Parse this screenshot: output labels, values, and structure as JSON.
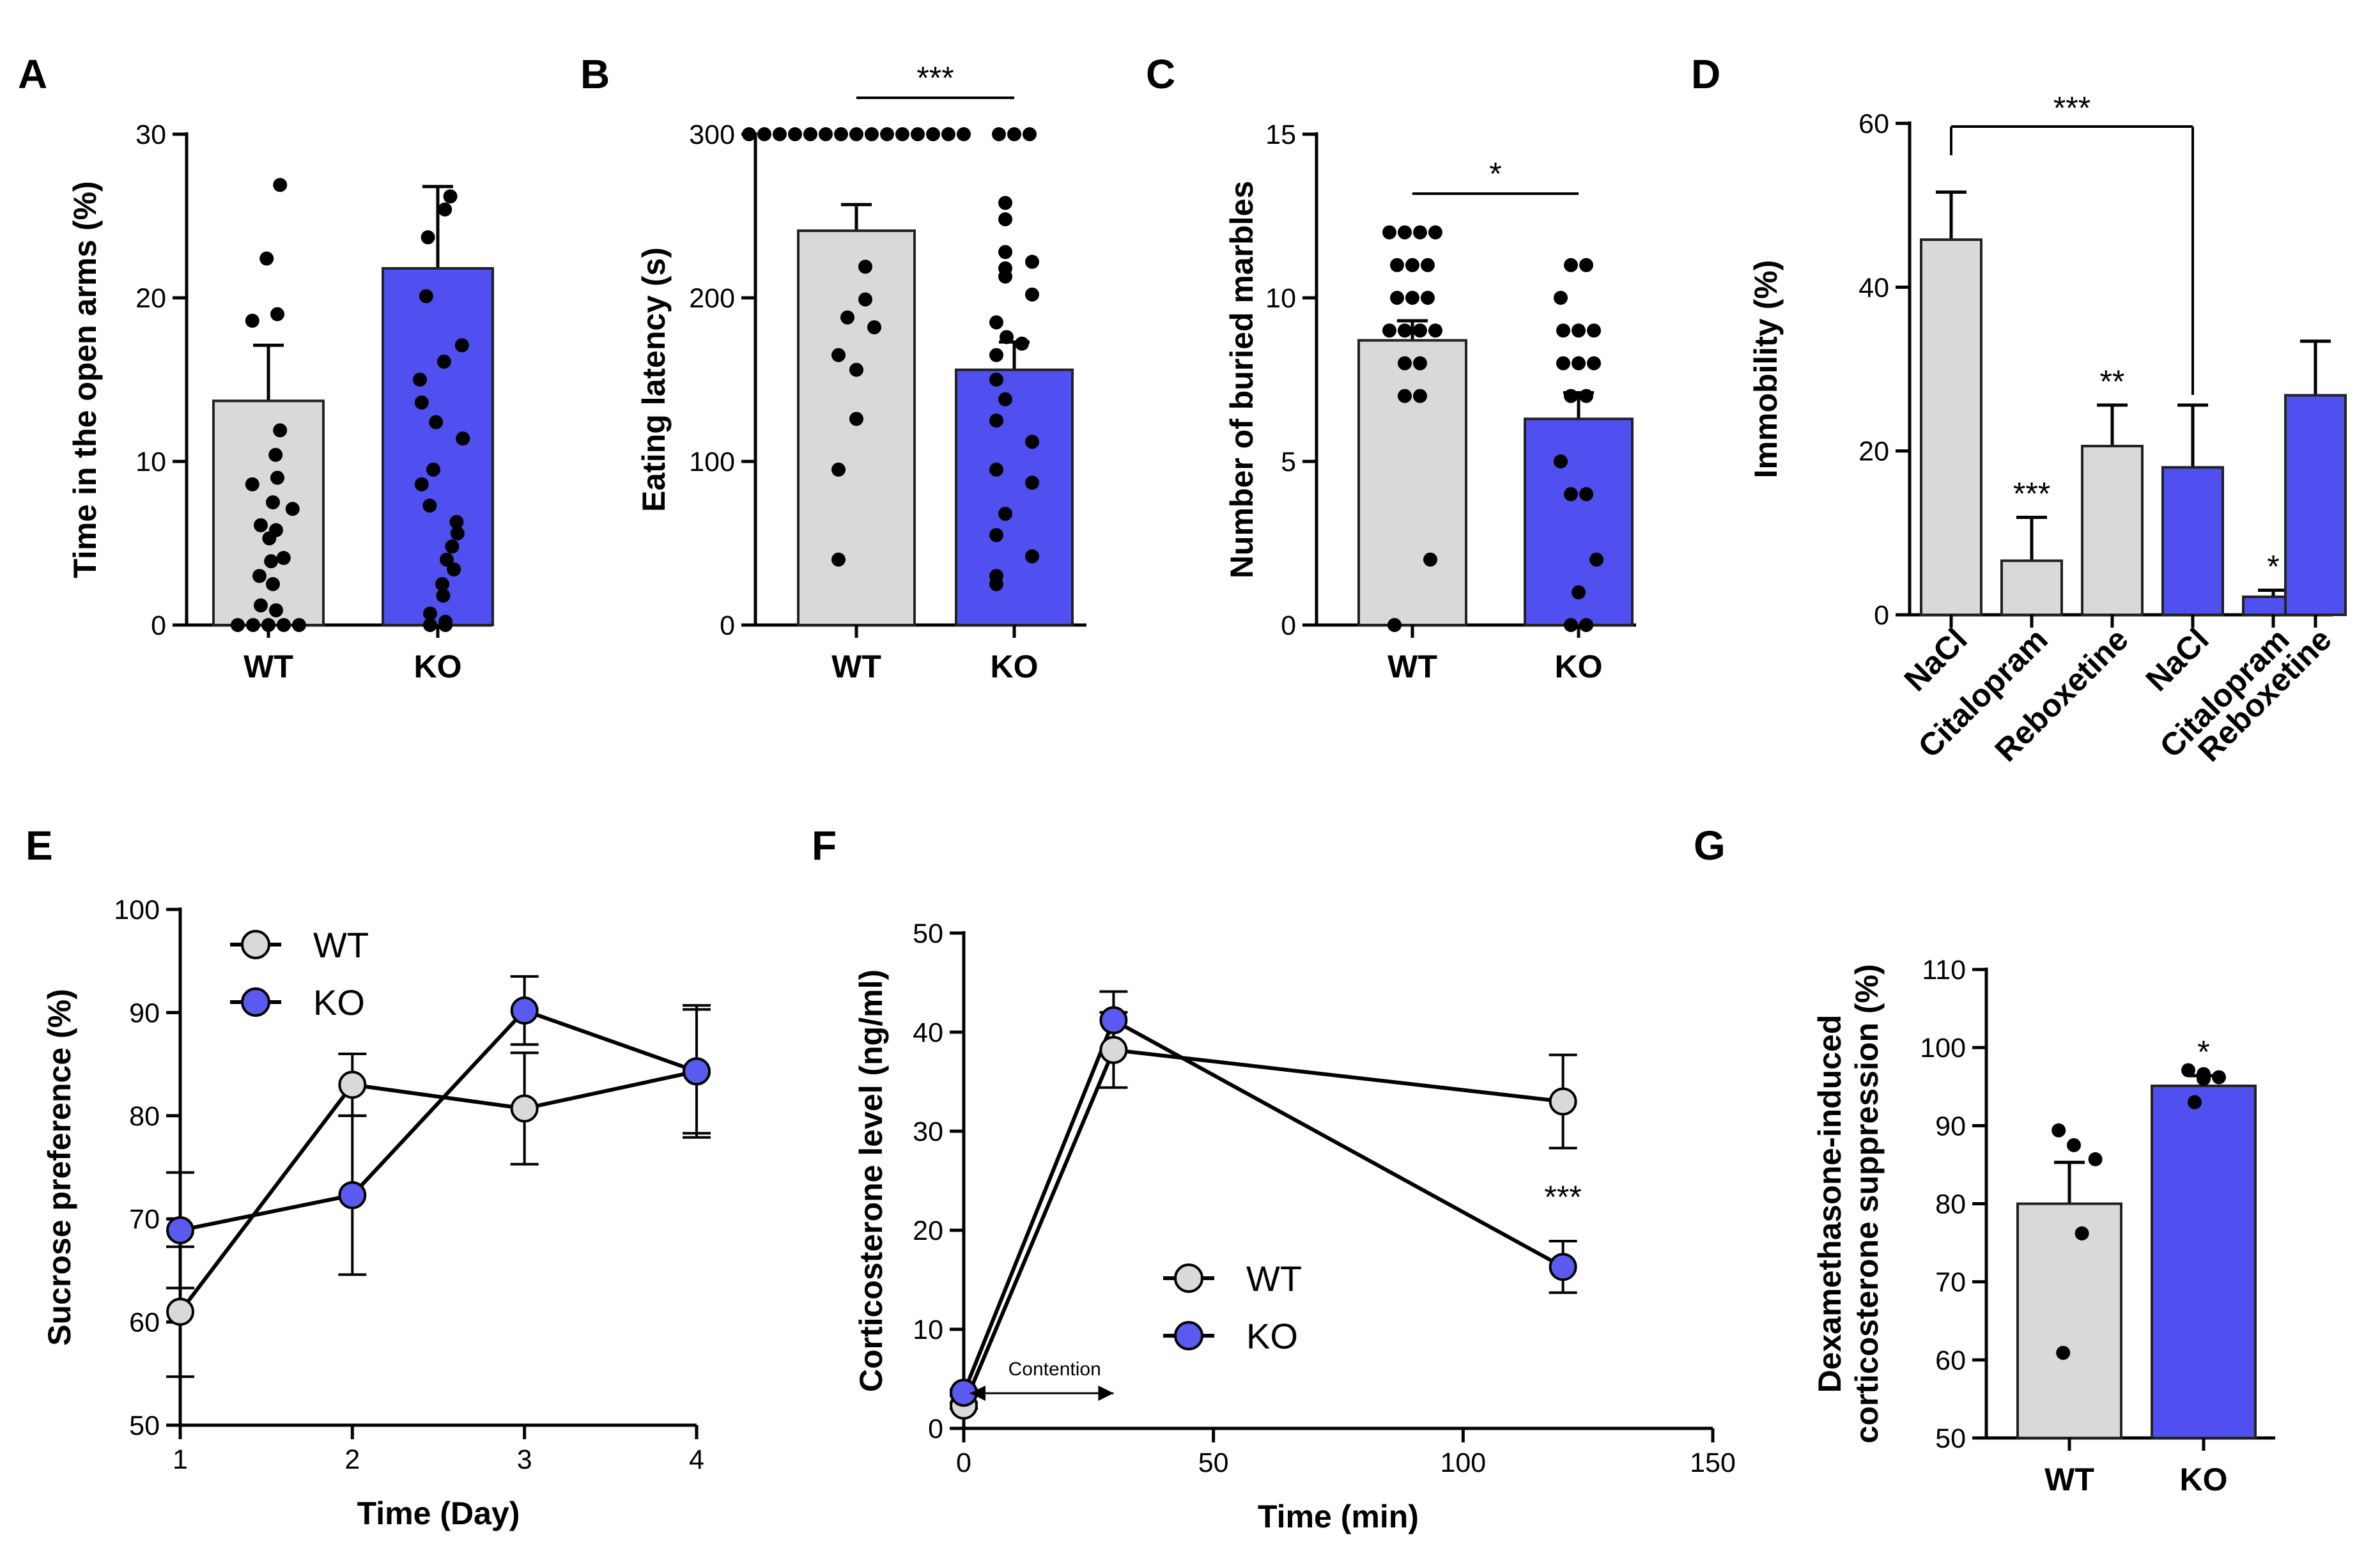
{
  "colors": {
    "wt": "#d9d9d9",
    "ko": "#5050f0",
    "wt_marker": "#d9d9d9",
    "ko_marker": "#5a5af0",
    "axis": "#000000",
    "dot": "#000000"
  },
  "chart_data": [
    {
      "panel": "A",
      "type": "bar",
      "ylabel": "Time in the open arms (%)",
      "ylim": [
        0,
        30
      ],
      "yticks": [
        0,
        10,
        20,
        30
      ],
      "categories": [
        "WT",
        "KO"
      ],
      "values": [
        13.7,
        21.8
      ],
      "errors": [
        3.4,
        5.0
      ],
      "points": [
        [
          26.9,
          22.4,
          19.0,
          18.6,
          11.9,
          10.4,
          9.0,
          8.6,
          7.5,
          7.1,
          6.1,
          5.8,
          5.3,
          4.1,
          3.9,
          3.0,
          2.5,
          1.2,
          0.9,
          0,
          0,
          0,
          0,
          0
        ],
        [
          26.2,
          25.4,
          23.7,
          20.1,
          17.1,
          16.1,
          15.0,
          13.6,
          12.4,
          11.4,
          9.5,
          8.6,
          7.3,
          6.3,
          5.6,
          4.8,
          4.0,
          3.4,
          2.5,
          1.8,
          0.7,
          0.2,
          0,
          0
        ]
      ],
      "significance": []
    },
    {
      "panel": "B",
      "type": "bar",
      "ylabel": "Eating latency (s)",
      "ylim": [
        0,
        300
      ],
      "yticks": [
        0,
        100,
        200,
        300
      ],
      "categories": [
        "WT",
        "KO"
      ],
      "values": [
        241,
        156
      ],
      "errors": [
        16,
        17
      ],
      "points": [
        [
          300,
          300,
          300,
          300,
          300,
          300,
          300,
          300,
          300,
          300,
          300,
          300,
          300,
          300,
          300,
          219,
          199,
          188,
          182,
          165,
          156,
          126,
          95,
          40
        ],
        [
          300,
          300,
          300,
          258,
          248,
          228,
          222,
          218,
          213,
          202,
          185,
          176,
          172,
          165,
          150,
          138,
          125,
          112,
          95,
          87,
          68,
          55,
          42,
          30,
          25
        ]
      ],
      "significance": [
        {
          "label": "***",
          "between": [
            0,
            1
          ]
        }
      ]
    },
    {
      "panel": "C",
      "type": "bar",
      "ylabel": "Number of buried marbles",
      "ylim": [
        0,
        15
      ],
      "yticks": [
        0,
        5,
        10,
        15
      ],
      "categories": [
        "WT",
        "KO"
      ],
      "values": [
        8.7,
        6.3
      ],
      "errors": [
        0.6,
        0.8
      ],
      "points": [
        [
          12,
          12,
          12,
          12,
          11,
          11,
          11,
          10,
          10,
          10,
          9,
          9,
          9,
          9,
          8,
          8,
          7,
          7,
          2,
          0
        ],
        [
          11,
          11,
          10,
          9,
          9,
          9,
          8,
          8,
          8,
          7,
          7,
          5,
          4,
          4,
          2,
          1,
          0,
          0
        ]
      ],
      "significance": [
        {
          "label": "*",
          "between": [
            0,
            1
          ]
        }
      ]
    },
    {
      "panel": "D",
      "type": "bar",
      "ylabel": "Immobility (%)",
      "ylim": [
        0,
        60
      ],
      "yticks": [
        0,
        20,
        40,
        60
      ],
      "categories": [
        "NaCl",
        "Citalopram",
        "Reboxetine",
        "NaCl",
        "Citalopram",
        "Reboxetine"
      ],
      "genotypes": [
        "WT",
        "WT",
        "WT",
        "KO",
        "KO",
        "KO"
      ],
      "values": [
        45.8,
        6.6,
        20.6,
        18.0,
        2.2,
        26.8
      ],
      "errors": [
        5.8,
        5.3,
        5.0,
        7.6,
        0.8,
        6.6
      ],
      "bar_annotations": [
        "",
        "***",
        "**",
        "",
        "*",
        ""
      ],
      "significance": [
        {
          "label": "***",
          "between": [
            0,
            3
          ]
        }
      ]
    },
    {
      "panel": "E",
      "type": "line",
      "xlabel": "Time (Day)",
      "ylabel": "Sucrose preference (%)",
      "xlim": [
        1,
        4
      ],
      "ylim": [
        50,
        100
      ],
      "xticks": [
        1,
        2,
        3,
        4
      ],
      "yticks": [
        50,
        60,
        70,
        80,
        90,
        100
      ],
      "x": [
        1,
        2,
        3,
        4
      ],
      "series": [
        {
          "name": "WT",
          "values": [
            61.0,
            83.0,
            80.7,
            84.3
          ],
          "errors": [
            6.3,
            3.0,
            5.4,
            6.4
          ]
        },
        {
          "name": "KO",
          "values": [
            68.9,
            72.3,
            90.2,
            84.3
          ],
          "errors": [
            5.6,
            7.7,
            3.3,
            6.0
          ]
        }
      ],
      "legend": "top-left"
    },
    {
      "panel": "F",
      "type": "line",
      "xlabel": "Time (min)",
      "ylabel": "Corticosterone level (ng/ml)",
      "xlim": [
        0,
        150
      ],
      "ylim": [
        0,
        50
      ],
      "xticks": [
        0,
        50,
        100,
        150
      ],
      "yticks": [
        0,
        10,
        20,
        30,
        40,
        50
      ],
      "x": [
        0,
        30,
        120
      ],
      "series": [
        {
          "name": "WT",
          "values": [
            2.3,
            38.2,
            33.0
          ],
          "errors": [
            0.3,
            3.8,
            4.7
          ]
        },
        {
          "name": "KO",
          "values": [
            3.6,
            41.2,
            16.3
          ],
          "errors": [
            0.3,
            2.9,
            2.6
          ]
        }
      ],
      "annotation": {
        "label": "Contention",
        "x_from": 0,
        "x_to": 30
      },
      "significance": [
        {
          "label": "***",
          "x": 120
        }
      ],
      "legend": "center"
    },
    {
      "panel": "G",
      "type": "bar",
      "ylabel": [
        "Dexamethasone-induced",
        "corticosterone suppression (%)"
      ],
      "ylim": [
        50,
        110
      ],
      "yticks": [
        50,
        60,
        70,
        80,
        90,
        100,
        110
      ],
      "categories": [
        "WT",
        "KO"
      ],
      "values": [
        80.0,
        95.1
      ],
      "errors": [
        5.3,
        1.3
      ],
      "points": [
        [
          89.4,
          87.5,
          85.7,
          76.2,
          60.9
        ],
        [
          97.1,
          96.6,
          96.2,
          96.0,
          93.0
        ]
      ],
      "bar_annotations": [
        "",
        "*"
      ]
    }
  ]
}
